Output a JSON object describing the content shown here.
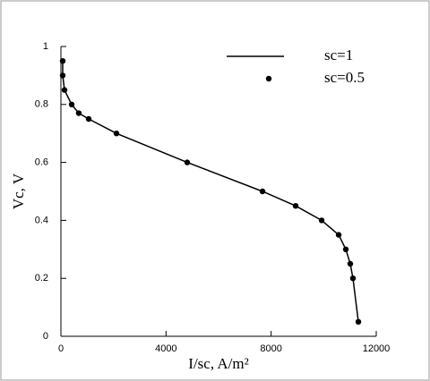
{
  "chart_data": {
    "type": "line",
    "x_label": "I/sc, A/m²",
    "y_label": "Vc, V",
    "x": [
      68,
      68,
      136,
      409,
      680,
      1057,
      2114,
      4807,
      7671,
      8933,
      9921,
      10570,
      10842,
      11012,
      11114,
      11319
    ],
    "series": [
      {
        "name": "sc=1",
        "color": "#000000",
        "mode": "line",
        "values": [
          0.95,
          0.9,
          0.85,
          0.8,
          0.77,
          0.75,
          0.7,
          0.6,
          0.5,
          0.45,
          0.4,
          0.35,
          0.3,
          0.25,
          0.2,
          0.05
        ]
      },
      {
        "name": "sc=0.5",
        "color": "#000000",
        "mode": "markers",
        "values": [
          0.95,
          0.9,
          0.85,
          0.8,
          0.77,
          0.75,
          0.7,
          0.6,
          0.5,
          0.45,
          0.4,
          0.35,
          0.3,
          0.25,
          0.2,
          0.05
        ]
      }
    ],
    "xlim": [
      0,
      12000
    ],
    "xticks": [
      0,
      4000,
      8000,
      12000
    ],
    "ylim": [
      0,
      1
    ],
    "yticks": [
      0,
      0.2,
      0.4,
      0.6,
      0.8,
      1
    ],
    "legend": "top-right"
  }
}
